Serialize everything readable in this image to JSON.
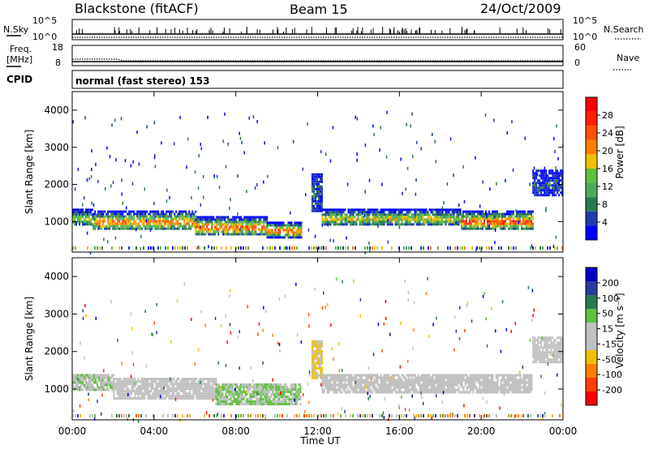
{
  "header": {
    "station": "Blackstone (fitACF)",
    "beam": "Beam 15",
    "date": "24/Oct/2009"
  },
  "top_panels": {
    "nsky_label": "N.Sky",
    "nsearch_label": "N.Search",
    "count_ticks": [
      "10^5",
      "10^0"
    ],
    "freq_label_1": "Freq.",
    "freq_label_2": "[MHz]",
    "freq_ticks": [
      "18",
      "8"
    ],
    "nave_label": "Nave",
    "nave_ticks": [
      "60",
      "0"
    ],
    "cpid_label": "CPID",
    "cpid_text": "normal (fast stereo) 153"
  },
  "axes": {
    "xlabel": "Time UT",
    "ylabel": "Slant Range [km]",
    "x_ticks": [
      "00:00",
      "04:00",
      "08:00",
      "12:00",
      "16:00",
      "20:00",
      "00:00"
    ],
    "y_ticks": [
      "1000",
      "2000",
      "3000",
      "4000"
    ]
  },
  "colorbars": {
    "power_label": "Power [dB]",
    "power_ticks": [
      "4",
      "8",
      "12",
      "16",
      "20",
      "24",
      "28"
    ],
    "power_colors": [
      "#0000ff",
      "#1e3caa",
      "#2a7a50",
      "#4aaa5a",
      "#60c040",
      "#f0c000",
      "#ff8000",
      "#ff5000",
      "#ff2000",
      "#ff0000"
    ],
    "velocity_label": "Velocity [m s⁻¹]",
    "velocity_ticks": [
      "200",
      "100",
      "50",
      "15",
      "-15",
      "-50",
      "-100",
      "-200"
    ],
    "velocity_colors": [
      "#0000c8",
      "#2a3aa0",
      "#2a7a50",
      "#60c040",
      "#c0c0c0",
      "#c0c0c0",
      "#f0c000",
      "#ff8000",
      "#ff4000",
      "#ff0000"
    ]
  },
  "chart_data": [
    {
      "type": "line",
      "title": "",
      "xlabel": "",
      "ylabel": "N.Sky",
      "x_range_hours": [
        0,
        24
      ],
      "note": "",
      "series": [
        {
          "name": "N.Sky",
          "x": [
            0,
            2,
            4,
            6,
            8,
            10,
            12,
            14,
            16,
            18,
            20,
            22,
            24
          ],
          "y": [
            100,
            100,
            100,
            100,
            100,
            100,
            100,
            100,
            100,
            100,
            100,
            100,
            100
          ]
        },
        {
          "name": "N.Search",
          "x": [
            0,
            2,
            4,
            6,
            8,
            10,
            12,
            14,
            16,
            18,
            20,
            22,
            24
          ],
          "y": [
            10,
            10,
            10,
            10,
            10,
            10,
            10,
            10,
            10,
            10,
            10,
            10,
            10
          ]
        }
      ]
    },
    {
      "type": "line",
      "title": "",
      "xlabel": "",
      "ylabel": "Freq. [MHz]",
      "x_range_hours": [
        0,
        24
      ],
      "series": [
        {
          "name": "Freq.",
          "x": [
            0,
            2.2,
            2.5,
            24
          ],
          "y": [
            11.2,
            11.2,
            10.4,
            10.4
          ]
        },
        {
          "name": "Nave",
          "x": [
            0,
            24
          ],
          "y": [
            18,
            18
          ]
        }
      ]
    },
    {
      "type": "heatmap",
      "title": "",
      "xlabel": "Time UT",
      "ylabel": "Slant Range [km]",
      "x_range_hours": [
        0,
        24
      ],
      "ylim": [
        180,
        4500
      ],
      "colorbar": "Power [dB]",
      "colorbar_range": [
        3,
        30
      ],
      "echo_bands": [
        {
          "t0": 0.0,
          "t1": 1.0,
          "r_low": 900,
          "r_high": 1350,
          "value_peak": 16
        },
        {
          "t0": 1.0,
          "t1": 6.0,
          "r_low": 780,
          "r_high": 1300,
          "value_peak": 22
        },
        {
          "t0": 6.0,
          "t1": 9.5,
          "r_low": 650,
          "r_high": 1150,
          "value_peak": 24
        },
        {
          "t0": 9.5,
          "t1": 11.2,
          "r_low": 600,
          "r_high": 1000,
          "value_peak": 24
        },
        {
          "t0": 11.7,
          "t1": 12.2,
          "r_low": 1300,
          "r_high": 2300,
          "value_peak": 8
        },
        {
          "t0": 12.2,
          "t1": 19.0,
          "r_low": 900,
          "r_high": 1350,
          "value_peak": 18
        },
        {
          "t0": 19.0,
          "t1": 22.5,
          "r_low": 800,
          "r_high": 1300,
          "value_peak": 26
        },
        {
          "t0": 22.5,
          "t1": 24.0,
          "r_low": 1700,
          "r_high": 2400,
          "value_peak": 6
        }
      ]
    },
    {
      "type": "heatmap",
      "title": "",
      "xlabel": "Time UT",
      "ylabel": "Slant Range [km]",
      "x_range_hours": [
        0,
        24
      ],
      "ylim": [
        180,
        4500
      ],
      "colorbar": "Velocity [m s⁻¹]",
      "colorbar_range": [
        -200,
        200
      ],
      "echo_bands": [
        {
          "t0": 0.0,
          "t1": 2.0,
          "r_low": 950,
          "r_high": 1400,
          "value_typical": 30
        },
        {
          "t0": 2.0,
          "t1": 7.0,
          "r_low": 750,
          "r_high": 1300,
          "value_typical": 0
        },
        {
          "t0": 7.0,
          "t1": 11.2,
          "r_low": 600,
          "r_high": 1150,
          "value_typical": 40
        },
        {
          "t0": 11.7,
          "t1": 12.2,
          "r_low": 1300,
          "r_high": 2300,
          "value_typical": -40
        },
        {
          "t0": 12.2,
          "t1": 22.5,
          "r_low": 900,
          "r_high": 1400,
          "value_typical": 0
        },
        {
          "t0": 22.5,
          "t1": 24.0,
          "r_low": 1700,
          "r_high": 2400,
          "value_typical": 0
        }
      ]
    }
  ]
}
